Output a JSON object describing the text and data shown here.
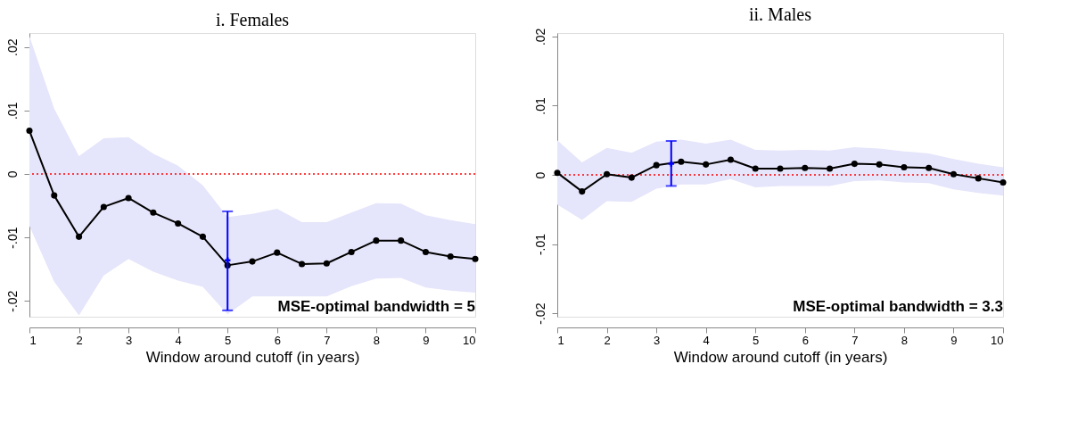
{
  "chart_data": [
    {
      "type": "line",
      "title": "i. Females",
      "xlabel": "Window around cutoff (in years)",
      "x": [
        1,
        1.5,
        2,
        2.5,
        3,
        3.5,
        4,
        4.5,
        5,
        5.5,
        6,
        6.5,
        7,
        7.5,
        8,
        8.5,
        9,
        9.5,
        10
      ],
      "series": [
        {
          "type": "line",
          "color": "#000000",
          "marker": "circle",
          "values": [
            0.0068,
            -0.0034,
            -0.0099,
            -0.0052,
            -0.0038,
            -0.0061,
            -0.0078,
            -0.0099,
            -0.0144,
            -0.0138,
            -0.0124,
            -0.0142,
            -0.0141,
            -0.0123,
            -0.0105,
            -0.0105,
            -0.0123,
            -0.013,
            -0.0134
          ],
          "upper": [
            0.0217,
            0.0103,
            0.0028,
            0.0056,
            0.0058,
            0.0032,
            0.0013,
            -0.0018,
            -0.0068,
            -0.0063,
            -0.0055,
            -0.0076,
            -0.0076,
            -0.0061,
            -0.0046,
            -0.0047,
            -0.0065,
            -0.0073,
            -0.0079
          ],
          "lower": [
            -0.0082,
            -0.017,
            -0.0223,
            -0.016,
            -0.0134,
            -0.0154,
            -0.0168,
            -0.0178,
            -0.0221,
            -0.0193,
            -0.0193,
            -0.0193,
            -0.0193,
            -0.0177,
            -0.0165,
            -0.0164,
            -0.0179,
            -0.0184,
            -0.0187
          ]
        },
        {
          "type": "scatter",
          "color": "#0000ff",
          "marker": "cross",
          "x": [
            5
          ],
          "values": [
            -0.0136
          ],
          "errors": [
            [
              -0.0215,
              -0.0059
            ]
          ]
        }
      ],
      "xlim": [
        1,
        10
      ],
      "xticks": [
        1,
        2,
        3,
        4,
        5,
        6,
        7,
        8,
        9,
        10
      ],
      "ylim": [
        -0.0225,
        0.0222
      ],
      "yticks": [
        {
          "value": -0.02,
          "label": "-.02"
        },
        {
          "value": -0.01,
          "label": "-.01"
        },
        0,
        {
          "value": 0.01,
          "label": ".01"
        },
        {
          "value": 0.02,
          "label": ".02"
        }
      ],
      "ref_lines": [
        {
          "axis": "y",
          "value": 0,
          "color": "#ff0000",
          "line_style": "dotted"
        }
      ],
      "annotations": [
        "MSE-optimal bandwidth = 5"
      ]
    },
    {
      "type": "line",
      "title": "ii. Males",
      "xlabel": "Window around cutoff (in years)",
      "x": [
        1,
        1.5,
        2,
        2.5,
        3,
        3.5,
        4,
        4.5,
        5,
        5.5,
        6,
        6.5,
        7,
        7.5,
        8,
        8.5,
        9,
        9.5,
        10
      ],
      "series": [
        {
          "type": "line",
          "color": "#000000",
          "marker": "circle",
          "values": [
            0.0003,
            -0.0024,
            0.0001,
            -0.0004,
            0.0014,
            0.0019,
            0.0015,
            0.0022,
            0.0009,
            0.0009,
            0.001,
            0.0009,
            0.0016,
            0.0015,
            0.0011,
            0.001,
            0.0001,
            -0.0005,
            -0.0011
          ],
          "upper": [
            0.005,
            0.0018,
            0.0039,
            0.0032,
            0.0048,
            0.0051,
            0.0045,
            0.0051,
            0.0036,
            0.0035,
            0.0036,
            0.0035,
            0.004,
            0.0038,
            0.0034,
            0.0031,
            0.0023,
            0.0016,
            0.0011
          ],
          "lower": [
            -0.0043,
            -0.0065,
            -0.0038,
            -0.0039,
            -0.002,
            -0.0014,
            -0.0014,
            -0.0006,
            -0.0018,
            -0.0016,
            -0.0016,
            -0.0016,
            -0.0009,
            -0.0008,
            -0.0011,
            -0.0012,
            -0.0021,
            -0.0026,
            -0.003
          ]
        },
        {
          "type": "scatter",
          "color": "#0000ff",
          "marker": "cross",
          "x": [
            3.3
          ],
          "values": [
            0.0016
          ],
          "errors": [
            [
              -0.0016,
              0.0049
            ]
          ]
        }
      ],
      "xlim": [
        1,
        10
      ],
      "xticks": [
        1,
        2,
        3,
        4,
        5,
        6,
        7,
        8,
        9,
        10
      ],
      "ylim": [
        -0.0205,
        0.0205
      ],
      "yticks": [
        {
          "value": -0.02,
          "label": "-.02"
        },
        {
          "value": -0.01,
          "label": "-.01"
        },
        0,
        {
          "value": 0.01,
          "label": ".01"
        },
        {
          "value": 0.02,
          "label": ".02"
        }
      ],
      "ref_lines": [
        {
          "axis": "y",
          "value": 0,
          "color": "#ff0000",
          "line_style": "dotted"
        }
      ],
      "annotations": [
        "MSE-optimal bandwidth = 3.3"
      ]
    }
  ]
}
